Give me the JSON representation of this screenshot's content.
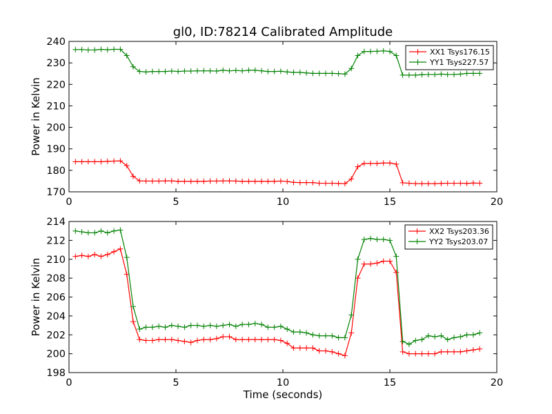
{
  "chart_data": [
    {
      "type": "line",
      "title": "gl0, ID:78214 Calibrated Amplitude",
      "xlabel": "",
      "ylabel": "Power in Kelvin",
      "xlim": [
        0,
        20
      ],
      "ylim": [
        170,
        240
      ],
      "xticks": [
        0,
        5,
        10,
        15,
        20
      ],
      "yticks": [
        170,
        180,
        190,
        200,
        210,
        220,
        230,
        240
      ],
      "legend_position": "top-right",
      "x": [
        0.3,
        0.6,
        0.9,
        1.2,
        1.5,
        1.8,
        2.1,
        2.4,
        2.7,
        3.0,
        3.3,
        3.6,
        3.9,
        4.2,
        4.5,
        4.8,
        5.1,
        5.4,
        5.7,
        6.0,
        6.3,
        6.6,
        6.9,
        7.2,
        7.5,
        7.8,
        8.1,
        8.4,
        8.7,
        9.0,
        9.3,
        9.6,
        9.9,
        10.2,
        10.5,
        10.8,
        11.1,
        11.4,
        11.7,
        12.0,
        12.3,
        12.6,
        12.9,
        13.2,
        13.5,
        13.8,
        14.1,
        14.4,
        14.7,
        15.0,
        15.3,
        15.6,
        15.9,
        16.2,
        16.5,
        16.8,
        17.1,
        17.4,
        17.7,
        18.0,
        18.3,
        18.6,
        18.9,
        19.2
      ],
      "series": [
        {
          "name": "XX1 Tsys176.15",
          "color": "#ff0000",
          "values": [
            184.0,
            184.0,
            184.0,
            184.0,
            184.0,
            184.2,
            184.3,
            184.4,
            182.2,
            177.2,
            175.1,
            175.0,
            175.0,
            175.0,
            175.1,
            175.1,
            174.9,
            174.9,
            174.9,
            174.9,
            174.9,
            175.0,
            175.0,
            175.1,
            175.1,
            175.0,
            174.9,
            174.9,
            174.9,
            174.9,
            174.9,
            174.9,
            175.0,
            174.8,
            174.4,
            174.3,
            174.3,
            174.3,
            174.0,
            174.0,
            174.0,
            173.9,
            173.8,
            176.0,
            181.7,
            183.2,
            183.2,
            183.2,
            183.4,
            183.4,
            182.9,
            174.2,
            174.0,
            173.8,
            173.8,
            173.8,
            173.8,
            173.9,
            174.0,
            174.0,
            174.0,
            173.9,
            174.1,
            174.0
          ]
        },
        {
          "name": "YY1 Tsys227.57",
          "color": "#008000",
          "values": [
            236.2,
            236.2,
            236.0,
            236.0,
            236.3,
            236.1,
            236.3,
            236.3,
            233.4,
            228.2,
            226.0,
            225.8,
            226.0,
            226.0,
            226.0,
            226.2,
            226.0,
            226.2,
            226.2,
            226.3,
            226.3,
            226.3,
            226.2,
            226.6,
            226.3,
            226.5,
            226.3,
            226.6,
            226.6,
            226.3,
            226.0,
            226.0,
            226.1,
            225.8,
            225.6,
            225.6,
            225.3,
            225.1,
            225.1,
            225.1,
            225.1,
            225.0,
            224.8,
            227.4,
            233.4,
            235.3,
            235.3,
            235.4,
            235.6,
            235.3,
            233.4,
            224.3,
            224.3,
            224.3,
            224.5,
            224.6,
            224.6,
            224.8,
            224.6,
            224.6,
            224.8,
            225.1,
            225.1,
            225.1
          ]
        }
      ]
    },
    {
      "type": "line",
      "title": "",
      "xlabel": "Time (seconds)",
      "ylabel": "Power in Kelvin",
      "xlim": [
        0,
        20
      ],
      "ylim": [
        198,
        214
      ],
      "xticks": [
        0,
        5,
        10,
        15,
        20
      ],
      "yticks": [
        198,
        200,
        202,
        204,
        206,
        208,
        210,
        212,
        214
      ],
      "legend_position": "top-right",
      "x": [
        0.3,
        0.6,
        0.9,
        1.2,
        1.5,
        1.8,
        2.1,
        2.4,
        2.7,
        3.0,
        3.3,
        3.6,
        3.9,
        4.2,
        4.5,
        4.8,
        5.1,
        5.4,
        5.7,
        6.0,
        6.3,
        6.6,
        6.9,
        7.2,
        7.5,
        7.8,
        8.1,
        8.4,
        8.7,
        9.0,
        9.3,
        9.6,
        9.9,
        10.2,
        10.5,
        10.8,
        11.1,
        11.4,
        11.7,
        12.0,
        12.3,
        12.6,
        12.9,
        13.2,
        13.5,
        13.8,
        14.1,
        14.4,
        14.7,
        15.0,
        15.3,
        15.6,
        15.9,
        16.2,
        16.5,
        16.8,
        17.1,
        17.4,
        17.7,
        18.0,
        18.3,
        18.6,
        18.9,
        19.2
      ],
      "series": [
        {
          "name": "XX2 Tsys203.36",
          "color": "#ff0000",
          "values": [
            210.3,
            210.4,
            210.3,
            210.5,
            210.3,
            210.5,
            210.8,
            211.1,
            208.4,
            203.4,
            201.5,
            201.4,
            201.4,
            201.5,
            201.5,
            201.5,
            201.4,
            201.3,
            201.2,
            201.4,
            201.5,
            201.5,
            201.6,
            201.8,
            201.8,
            201.5,
            201.5,
            201.5,
            201.5,
            201.5,
            201.5,
            201.5,
            201.4,
            201.1,
            200.6,
            200.6,
            200.6,
            200.6,
            200.3,
            200.3,
            200.2,
            200.0,
            199.8,
            202.2,
            208.0,
            209.5,
            209.5,
            209.6,
            209.8,
            209.8,
            208.6,
            200.2,
            200.0,
            200.0,
            200.0,
            200.0,
            200.0,
            200.2,
            200.2,
            200.2,
            200.2,
            200.3,
            200.4,
            200.5
          ]
        },
        {
          "name": "YY2 Tsys203.07",
          "color": "#008000",
          "values": [
            213.0,
            212.9,
            212.8,
            212.8,
            213.0,
            212.8,
            213.0,
            213.1,
            210.2,
            205.0,
            202.6,
            202.8,
            202.8,
            202.9,
            202.8,
            203.0,
            202.9,
            202.8,
            203.0,
            203.0,
            202.9,
            203.0,
            202.9,
            203.0,
            203.1,
            202.9,
            203.1,
            203.1,
            203.2,
            203.1,
            202.8,
            202.8,
            202.9,
            202.6,
            202.3,
            202.3,
            202.2,
            202.0,
            201.9,
            201.9,
            201.9,
            201.7,
            201.7,
            204.1,
            210.0,
            212.1,
            212.2,
            212.1,
            212.1,
            212.0,
            210.3,
            201.3,
            201.0,
            201.4,
            201.5,
            201.9,
            201.8,
            201.9,
            201.5,
            201.7,
            201.8,
            202.0,
            202.0,
            202.2
          ]
        }
      ]
    }
  ]
}
